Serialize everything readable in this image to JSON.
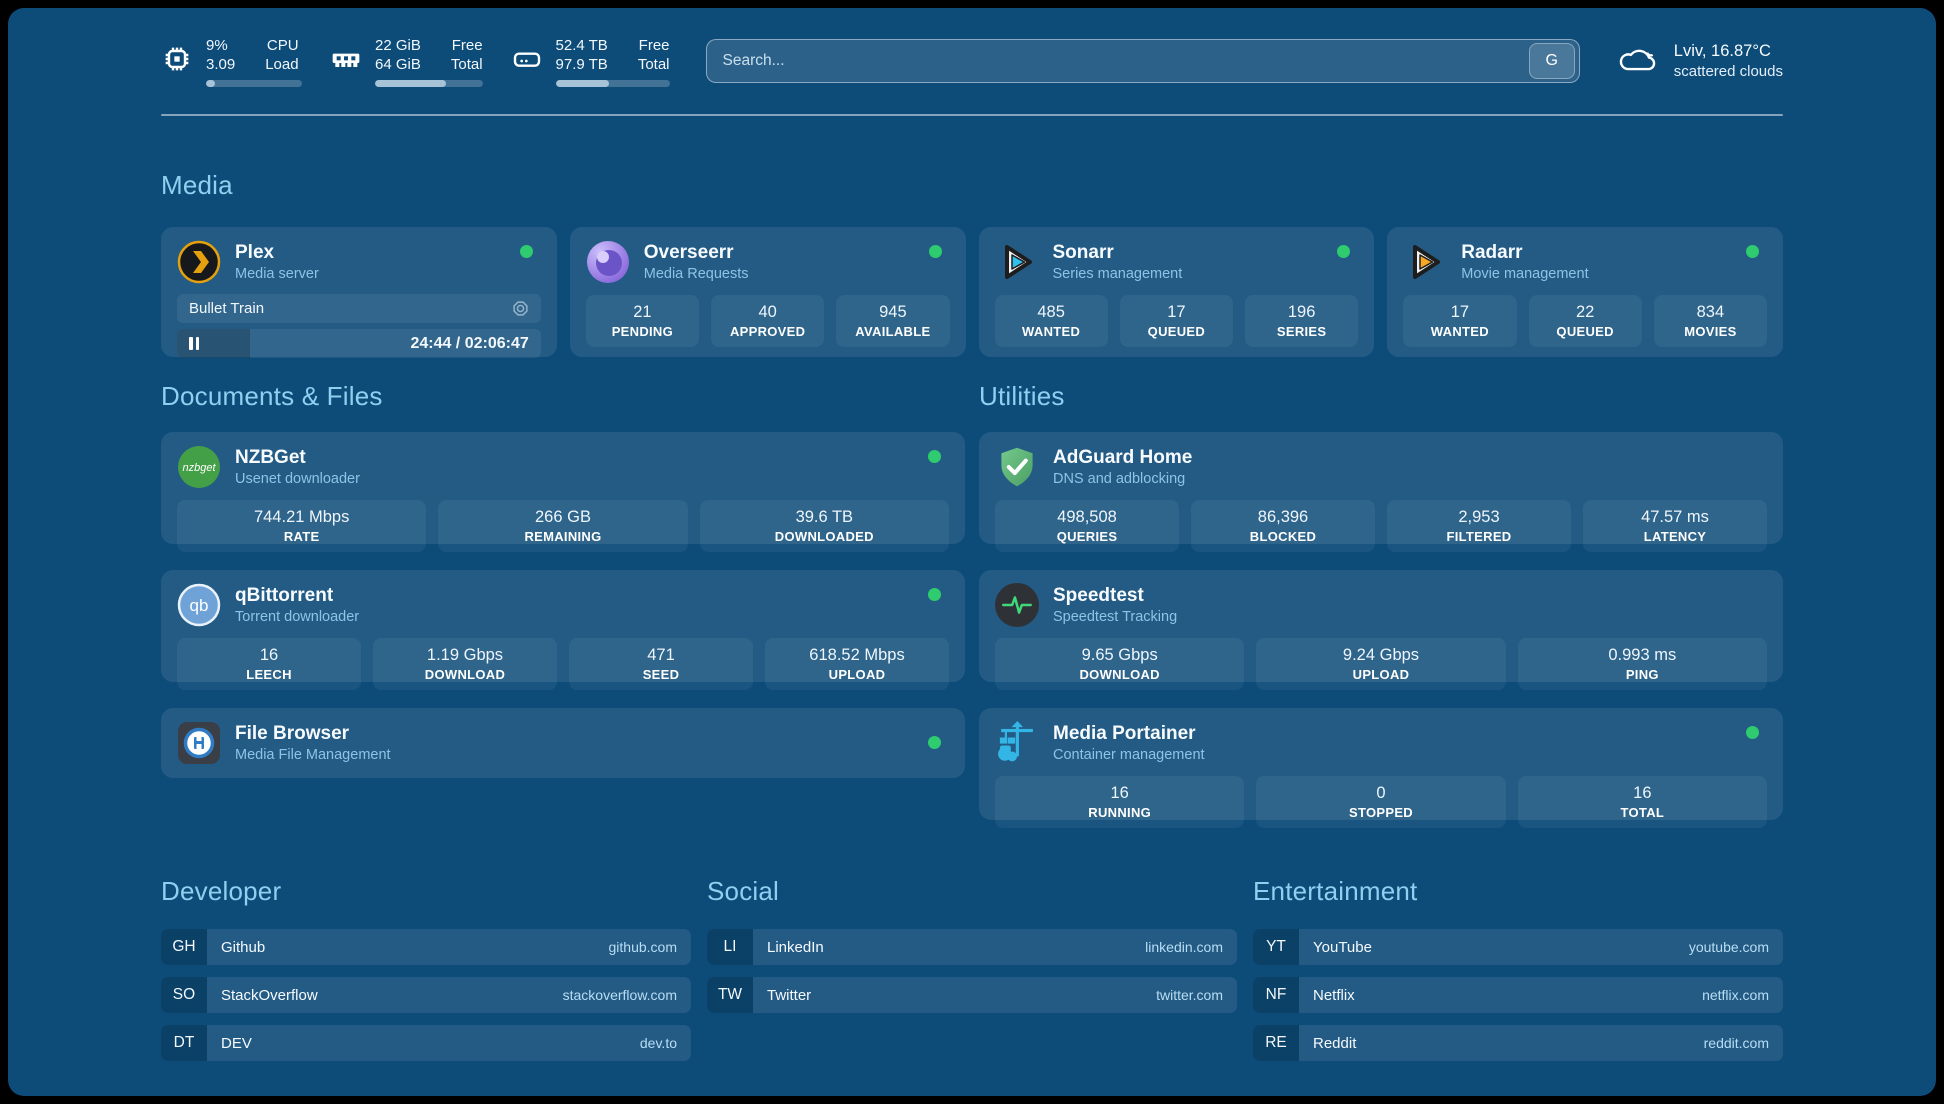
{
  "colors": {
    "status_online": "#2fcb6f",
    "accent_title": "#8fd0f0"
  },
  "header": {
    "stats": [
      {
        "icon": "cpu-icon",
        "values": [
          "9%",
          "3.09"
        ],
        "labels": [
          "CPU",
          "Load"
        ],
        "progress_pct": 9
      },
      {
        "icon": "memory-icon",
        "values": [
          "22 GiB",
          "64 GiB"
        ],
        "labels": [
          "Free",
          "Total"
        ],
        "progress_pct": 66
      },
      {
        "icon": "disk-icon",
        "values": [
          "52.4 TB",
          "97.9 TB"
        ],
        "labels": [
          "Free",
          "Total"
        ],
        "progress_pct": 47
      }
    ],
    "search": {
      "placeholder": "Search...",
      "engine_label": "G"
    },
    "weather": {
      "location_temp": "Lviv, 16.87°C",
      "condition": "scattered clouds"
    }
  },
  "media": {
    "title": "Media",
    "plex": {
      "name": "Plex",
      "subtitle": "Media server",
      "now_playing": {
        "title": "Bullet Train",
        "time": "24:44 / 02:06:47",
        "progress_pct": 20
      }
    },
    "cards": [
      {
        "name": "Overseerr",
        "subtitle": "Media Requests",
        "stats": [
          {
            "value": "21",
            "label": "PENDING"
          },
          {
            "value": "40",
            "label": "APPROVED"
          },
          {
            "value": "945",
            "label": "AVAILABLE"
          }
        ]
      },
      {
        "name": "Sonarr",
        "subtitle": "Series management",
        "stats": [
          {
            "value": "485",
            "label": "WANTED"
          },
          {
            "value": "17",
            "label": "QUEUED"
          },
          {
            "value": "196",
            "label": "SERIES"
          }
        ]
      },
      {
        "name": "Radarr",
        "subtitle": "Movie management",
        "stats": [
          {
            "value": "17",
            "label": "WANTED"
          },
          {
            "value": "22",
            "label": "QUEUED"
          },
          {
            "value": "834",
            "label": "MOVIES"
          }
        ]
      }
    ]
  },
  "documents": {
    "title": "Documents & Files",
    "nzbget": {
      "name": "NZBGet",
      "subtitle": "Usenet downloader",
      "stats": [
        {
          "value": "744.21 Mbps",
          "label": "RATE"
        },
        {
          "value": "266 GB",
          "label": "REMAINING"
        },
        {
          "value": "39.6 TB",
          "label": "DOWNLOADED"
        }
      ]
    },
    "qbittorrent": {
      "name": "qBittorrent",
      "subtitle": "Torrent downloader",
      "stats": [
        {
          "value": "16",
          "label": "LEECH"
        },
        {
          "value": "1.19 Gbps",
          "label": "DOWNLOAD"
        },
        {
          "value": "471",
          "label": "SEED"
        },
        {
          "value": "618.52 Mbps",
          "label": "UPLOAD"
        }
      ]
    },
    "filebrowser": {
      "name": "File Browser",
      "subtitle": "Media File Management"
    }
  },
  "utilities": {
    "title": "Utilities",
    "adguard": {
      "name": "AdGuard Home",
      "subtitle": "DNS and adblocking",
      "stats": [
        {
          "value": "498,508",
          "label": "QUERIES"
        },
        {
          "value": "86,396",
          "label": "BLOCKED"
        },
        {
          "value": "2,953",
          "label": "FILTERED"
        },
        {
          "value": "47.57 ms",
          "label": "LATENCY"
        }
      ]
    },
    "speedtest": {
      "name": "Speedtest",
      "subtitle": "Speedtest Tracking",
      "stats": [
        {
          "value": "9.65 Gbps",
          "label": "DOWNLOAD"
        },
        {
          "value": "9.24 Gbps",
          "label": "UPLOAD"
        },
        {
          "value": "0.993 ms",
          "label": "PING"
        }
      ]
    },
    "portainer": {
      "name": "Media Portainer",
      "subtitle": "Container management",
      "stats": [
        {
          "value": "16",
          "label": "RUNNING"
        },
        {
          "value": "0",
          "label": "STOPPED"
        },
        {
          "value": "16",
          "label": "TOTAL"
        }
      ]
    }
  },
  "bookmarks": [
    {
      "title": "Developer",
      "items": [
        {
          "abbr": "GH",
          "name": "Github",
          "url": "github.com"
        },
        {
          "abbr": "SO",
          "name": "StackOverflow",
          "url": "stackoverflow.com"
        },
        {
          "abbr": "DT",
          "name": "DEV",
          "url": "dev.to"
        }
      ]
    },
    {
      "title": "Social",
      "items": [
        {
          "abbr": "LI",
          "name": "LinkedIn",
          "url": "linkedin.com"
        },
        {
          "abbr": "TW",
          "name": "Twitter",
          "url": "twitter.com"
        }
      ]
    },
    {
      "title": "Entertainment",
      "items": [
        {
          "abbr": "YT",
          "name": "YouTube",
          "url": "youtube.com"
        },
        {
          "abbr": "NF",
          "name": "Netflix",
          "url": "netflix.com"
        },
        {
          "abbr": "RE",
          "name": "Reddit",
          "url": "reddit.com"
        }
      ]
    }
  ]
}
